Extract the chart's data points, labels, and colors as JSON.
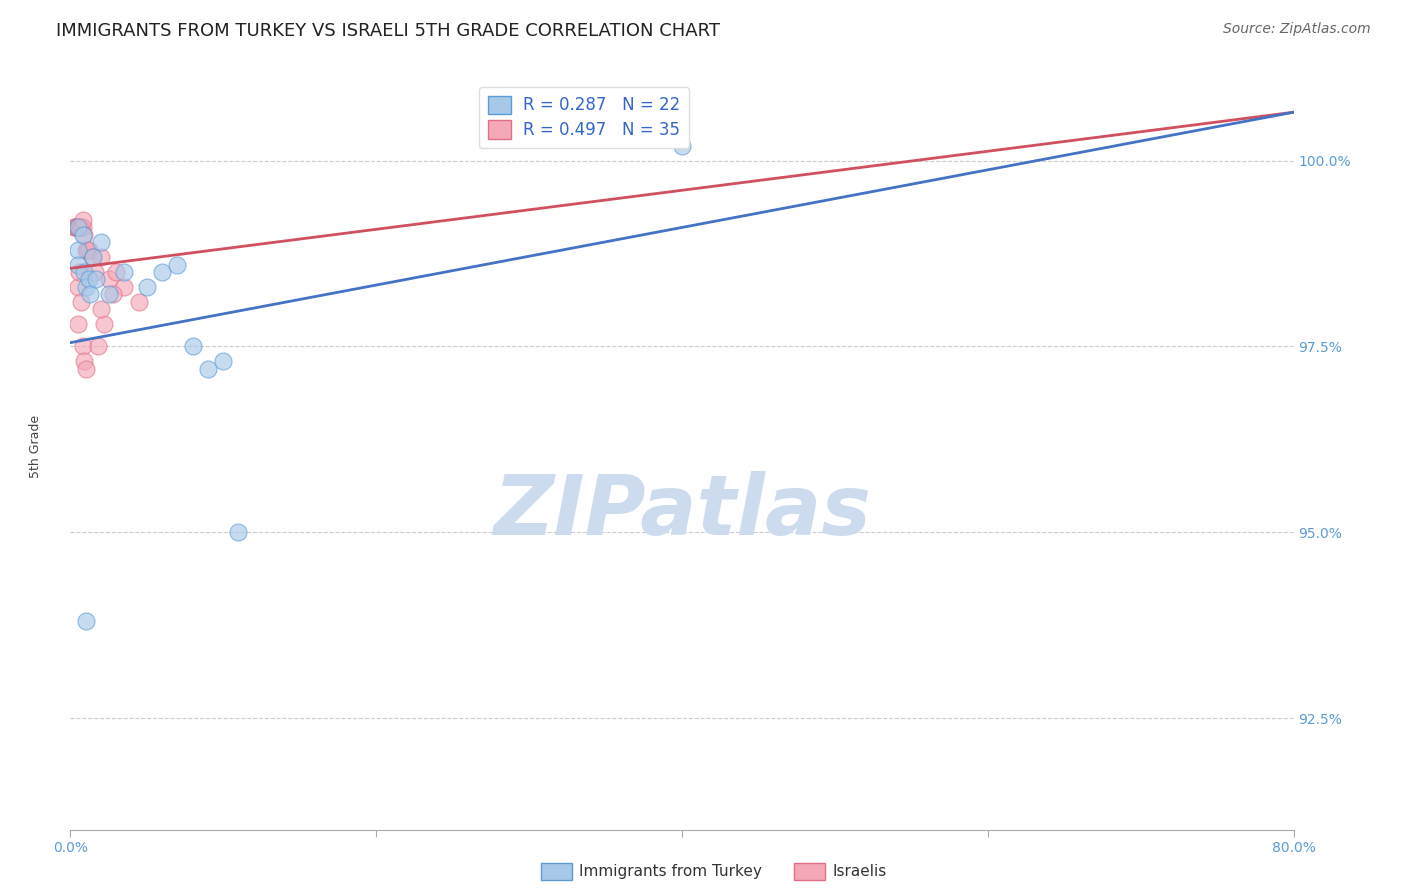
{
  "title": "IMMIGRANTS FROM TURKEY VS ISRAELI 5TH GRADE CORRELATION CHART",
  "source": "Source: ZipAtlas.com",
  "ylabel_label": "5th Grade",
  "xlim": [
    0.0,
    80.0
  ],
  "ylim": [
    91.0,
    101.2
  ],
  "yticks": [
    92.5,
    95.0,
    97.5,
    100.0
  ],
  "xtick_positions": [
    0.0,
    20.0,
    40.0,
    60.0,
    80.0
  ],
  "xtick_labels_show": [
    "0.0%",
    "",
    "",
    "",
    "80.0%"
  ],
  "blue_R": 0.287,
  "blue_N": 22,
  "pink_R": 0.497,
  "pink_N": 35,
  "blue_fill_color": "#a8c8e8",
  "pink_fill_color": "#f4a8b8",
  "blue_edge_color": "#5b9bd5",
  "pink_edge_color": "#e07088",
  "blue_line_color": "#4472c4",
  "pink_line_color": "#d05060",
  "legend_text_color": "#3366cc",
  "watermark_color": "#ccdcee",
  "grid_color": "#cccccc",
  "background_color": "#ffffff",
  "axis_color": "#aaaaaa",
  "tick_label_color": "#5b9bd5",
  "title_fontsize": 13,
  "axis_label_fontsize": 9,
  "tick_fontsize": 10,
  "legend_fontsize": 11,
  "source_fontsize": 10,
  "blue_scatter_x": [
    0.5,
    0.5,
    0.5,
    0.8,
    0.9,
    1.0,
    1.2,
    1.3,
    1.5,
    1.7,
    2.0,
    2.5,
    3.5,
    5.0,
    6.0,
    7.0,
    8.0,
    9.0,
    10.0,
    11.0,
    40.0,
    1.0
  ],
  "blue_scatter_y": [
    99.1,
    98.8,
    98.6,
    99.0,
    98.5,
    98.3,
    98.4,
    98.2,
    98.7,
    98.4,
    98.9,
    98.2,
    98.5,
    98.3,
    98.5,
    98.6,
    97.5,
    97.2,
    97.3,
    95.0,
    100.2,
    93.8
  ],
  "pink_scatter_x": [
    0.3,
    0.3,
    0.3,
    0.4,
    0.4,
    0.5,
    0.5,
    0.6,
    0.6,
    0.7,
    0.7,
    0.8,
    0.8,
    0.9,
    1.0,
    1.1,
    1.2,
    1.4,
    1.6,
    2.0,
    2.5,
    3.0,
    3.5,
    4.5,
    2.8,
    0.5,
    0.6,
    0.7,
    0.5,
    0.8,
    0.9,
    1.0,
    1.8,
    2.2,
    2.0
  ],
  "pink_scatter_y": [
    99.1,
    99.1,
    99.1,
    99.1,
    99.1,
    99.1,
    99.1,
    99.1,
    99.1,
    99.1,
    99.1,
    99.1,
    99.2,
    99.0,
    98.8,
    98.8,
    98.8,
    98.7,
    98.5,
    98.7,
    98.4,
    98.5,
    98.3,
    98.1,
    98.2,
    98.3,
    98.5,
    98.1,
    97.8,
    97.5,
    97.3,
    97.2,
    97.5,
    97.8,
    98.0
  ],
  "blue_trend_x0": 0.0,
  "blue_trend_y0": 97.55,
  "blue_trend_x1": 80.0,
  "blue_trend_y1": 100.65,
  "pink_trend_x0": 0.0,
  "pink_trend_y0": 98.55,
  "pink_trend_x1": 80.0,
  "pink_trend_y1": 100.65,
  "scatter_size": 150
}
